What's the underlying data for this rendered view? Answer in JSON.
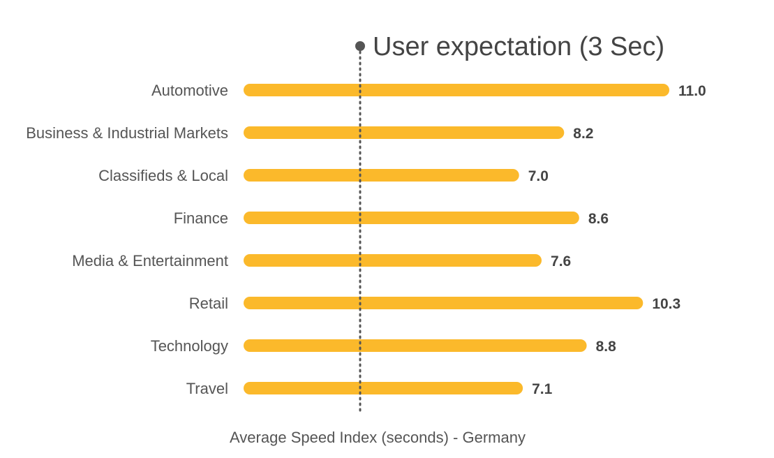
{
  "chart_data": {
    "type": "bar",
    "orientation": "horizontal",
    "categories": [
      "Automotive",
      "Business &  Industrial Markets",
      "Classifieds & Local",
      "Finance",
      "Media & Entertainment",
      "Retail",
      "Technology",
      "Travel"
    ],
    "values": [
      11.0,
      8.2,
      7.0,
      8.6,
      7.6,
      10.3,
      8.8,
      7.1
    ],
    "value_labels": [
      "11.0",
      "8.2",
      "7.0",
      "8.6",
      "7.6",
      "10.3",
      "8.8",
      "7.1"
    ],
    "xlabel": "Average Speed Index (seconds) - Germany",
    "xlim": [
      0,
      11
    ],
    "bar_color": "#FBB92B",
    "reference_line": {
      "value": 3,
      "label": "User expectation (3 Sec)",
      "style": "dotted",
      "color": "#555555"
    },
    "grid": false,
    "legend": "none"
  }
}
